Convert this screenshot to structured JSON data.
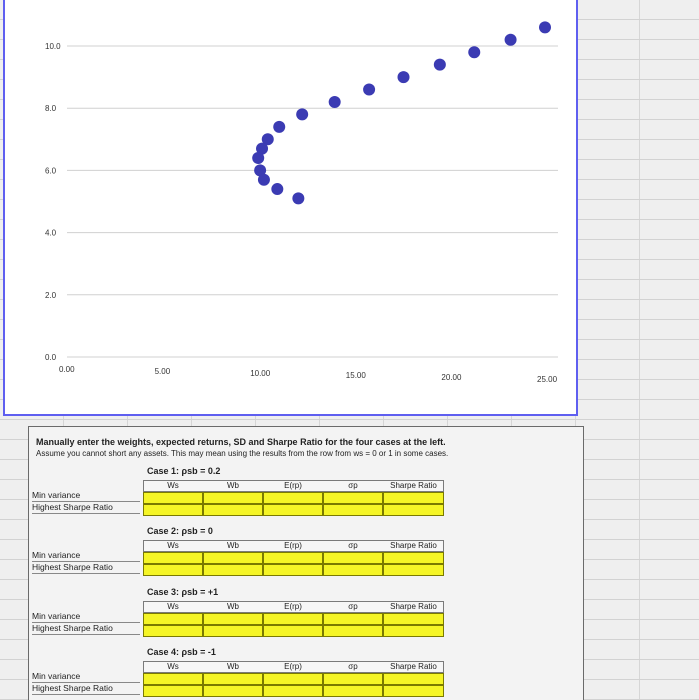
{
  "chart_data": {
    "type": "scatter",
    "x_ticks": [
      "0.00",
      "5.00",
      "10.00",
      "15.00",
      "20.00",
      "25.00"
    ],
    "y_ticks": [
      "0.0",
      "2.0",
      "4.0",
      "6.0",
      "8.0",
      "10.0"
    ],
    "xlim": [
      0,
      25
    ],
    "ylim": [
      0,
      10
    ],
    "grid": "horizontal",
    "color": "#3b3bb3",
    "points": [
      {
        "x": 25.0,
        "y": 10.6
      },
      {
        "x": 23.2,
        "y": 10.2
      },
      {
        "x": 21.3,
        "y": 9.8
      },
      {
        "x": 19.5,
        "y": 9.4
      },
      {
        "x": 17.6,
        "y": 9.0
      },
      {
        "x": 15.8,
        "y": 8.6
      },
      {
        "x": 14.0,
        "y": 8.2
      },
      {
        "x": 12.3,
        "y": 7.8
      },
      {
        "x": 11.1,
        "y": 7.4
      },
      {
        "x": 10.5,
        "y": 7.0
      },
      {
        "x": 10.2,
        "y": 6.7
      },
      {
        "x": 10.0,
        "y": 6.4
      },
      {
        "x": 10.1,
        "y": 6.0
      },
      {
        "x": 10.3,
        "y": 5.7
      },
      {
        "x": 11.0,
        "y": 5.4
      },
      {
        "x": 12.1,
        "y": 5.1
      }
    ]
  },
  "instructions": {
    "title": "Manually enter the weights, expected returns, SD and Sharpe Ratio for the four cases at the left.",
    "note": "Assume you cannot short any assets. This may mean using the results from the row from ws = 0 or 1 in some cases."
  },
  "columns": [
    "Ws",
    "Wb",
    "E(rp)",
    "σp",
    "Sharpe Ratio"
  ],
  "row_labels": [
    "Min variance",
    "Highest Sharpe Ratio"
  ],
  "cases": [
    {
      "title": "Case 1: ρsb = 0.2"
    },
    {
      "title": "Case 2: ρsb = 0"
    },
    {
      "title": "Case 3: ρsb = +1"
    },
    {
      "title": "Case 4: ρsb = -1"
    }
  ],
  "colors": {
    "chart_border": "#5f5ff0",
    "marker": "#3b3bb3",
    "input_cell": "#f5f526"
  }
}
